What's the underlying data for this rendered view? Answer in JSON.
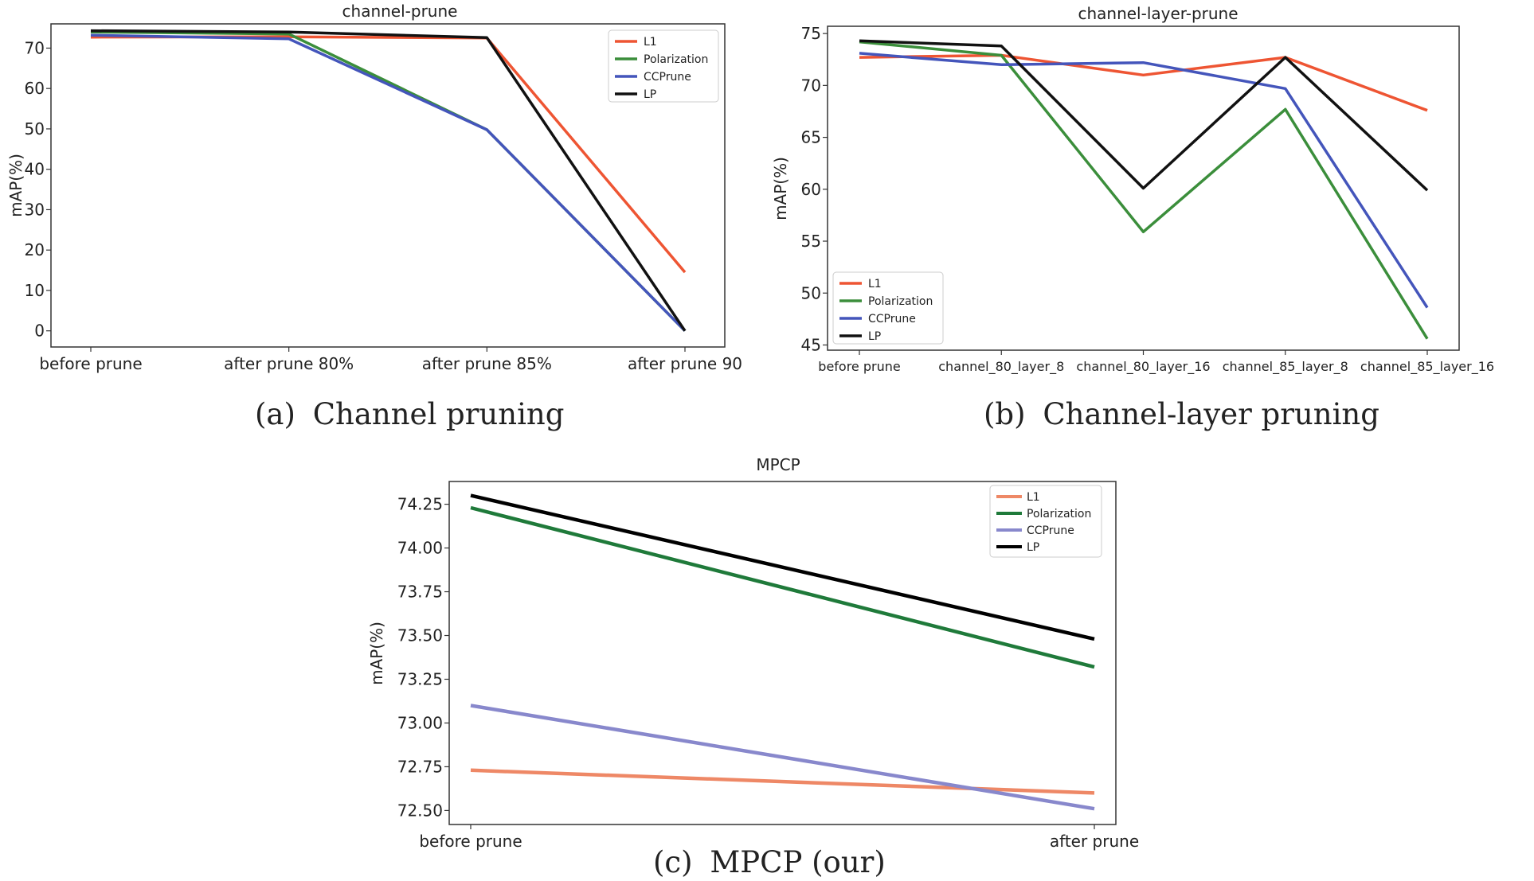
{
  "figure": {
    "captions": {
      "a": {
        "label": "(a)",
        "text": "Channel pruning"
      },
      "b": {
        "label": "(b)",
        "text": "Channel-layer pruning"
      },
      "c": {
        "label": "(c)",
        "text": "MPCP (our)"
      }
    }
  },
  "chart_data": [
    {
      "id": "a",
      "type": "line",
      "title": "channel-prune",
      "xlabel": "",
      "ylabel": "mAP(%)",
      "categories": [
        "before prune",
        "after prune 80%",
        "after prune 85%",
        "after prune 90"
      ],
      "ylim": [
        -4,
        76
      ],
      "yticks": [
        0,
        10,
        20,
        30,
        40,
        50,
        60,
        70
      ],
      "legend_position": "top-right",
      "series": [
        {
          "name": "L1",
          "color": "#ee5533",
          "values": [
            72.7,
            72.8,
            72.5,
            14.5
          ]
        },
        {
          "name": "Polarization",
          "color": "#3b8e3b",
          "values": [
            74.0,
            73.5,
            49.8,
            0.0
          ]
        },
        {
          "name": "CCPrune",
          "color": "#4455bb",
          "values": [
            73.2,
            72.3,
            49.8,
            0.0
          ]
        },
        {
          "name": "LP",
          "color": "#111111",
          "values": [
            74.3,
            74.0,
            72.6,
            0.0
          ]
        }
      ]
    },
    {
      "id": "b",
      "type": "line",
      "title": "channel-layer-prune",
      "xlabel": "",
      "ylabel": "mAP(%)",
      "categories": [
        "before prune",
        "channel_80_layer_8",
        "channel_80_layer_16",
        "channel_85_layer_8",
        "channel_85_layer_16"
      ],
      "ylim": [
        44.5,
        75.7
      ],
      "yticks": [
        45,
        50,
        55,
        60,
        65,
        70,
        75
      ],
      "legend_position": "bottom-left",
      "series": [
        {
          "name": "L1",
          "color": "#ee5533",
          "values": [
            72.7,
            72.9,
            71.0,
            72.7,
            67.6
          ]
        },
        {
          "name": "Polarization",
          "color": "#3b8e3b",
          "values": [
            74.2,
            72.9,
            55.9,
            67.7,
            45.6
          ]
        },
        {
          "name": "CCPrune",
          "color": "#4455bb",
          "values": [
            73.1,
            72.0,
            72.2,
            69.7,
            48.6
          ]
        },
        {
          "name": "LP",
          "color": "#111111",
          "values": [
            74.3,
            73.8,
            60.1,
            72.7,
            59.9
          ]
        }
      ]
    },
    {
      "id": "c",
      "type": "line",
      "title": "MPCP",
      "xlabel": "",
      "ylabel": "mAP(%)",
      "categories": [
        "before prune",
        "after prune"
      ],
      "ylim": [
        72.42,
        74.38
      ],
      "yticks": [
        72.5,
        72.75,
        73.0,
        73.25,
        73.5,
        73.75,
        74.0,
        74.25
      ],
      "ytick_labels": [
        "72.50",
        "72.75",
        "73.00",
        "73.25",
        "73.50",
        "73.75",
        "74.00",
        "74.25"
      ],
      "legend_position": "top-right",
      "series": [
        {
          "name": "L1",
          "color": "#ee8866",
          "values": [
            72.73,
            72.6
          ]
        },
        {
          "name": "Polarization",
          "color": "#1f7a3a",
          "values": [
            74.23,
            73.32
          ]
        },
        {
          "name": "CCPrune",
          "color": "#8888cc",
          "values": [
            73.1,
            72.51
          ]
        },
        {
          "name": "LP",
          "color": "#000000",
          "values": [
            74.3,
            73.48
          ]
        }
      ]
    }
  ]
}
